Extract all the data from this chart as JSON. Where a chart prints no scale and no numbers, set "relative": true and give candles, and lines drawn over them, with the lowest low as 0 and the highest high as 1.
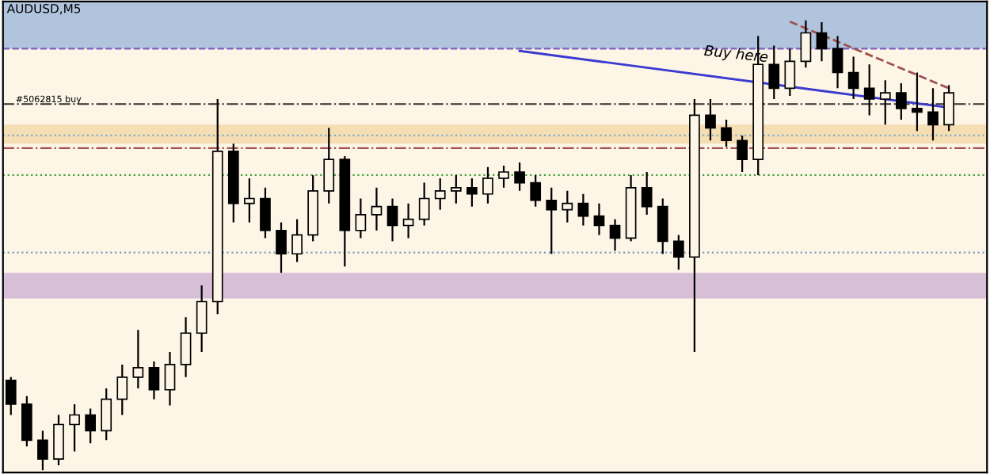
{
  "chart_data": {
    "type": "candlestick",
    "title": "AUDUSD,M5",
    "relative": true,
    "categories": [
      null,
      null,
      null,
      null,
      null,
      null,
      null,
      null,
      null,
      null,
      null,
      null,
      null,
      null,
      null,
      null,
      null,
      null,
      null,
      null,
      null,
      null,
      null,
      null,
      null,
      null,
      null,
      null,
      null,
      null,
      null,
      null,
      null,
      null,
      null,
      null,
      null,
      null,
      null,
      null,
      null,
      null,
      null,
      null,
      null,
      null,
      null,
      null,
      null,
      null,
      null,
      null,
      null,
      null,
      null,
      null,
      null,
      null,
      null,
      null
    ],
    "color": "#000000",
    "ohlc": [
      [
        0.2,
        0.207,
        0.123,
        0.147
      ],
      [
        0.147,
        0.165,
        0.053,
        0.067
      ],
      [
        0.067,
        0.088,
        0,
        0.025
      ],
      [
        0.025,
        0.123,
        0.011,
        0.102
      ],
      [
        0.102,
        0.147,
        0.042,
        0.123
      ],
      [
        0.123,
        0.137,
        0.06,
        0.088
      ],
      [
        0.088,
        0.182,
        0.067,
        0.158
      ],
      [
        0.158,
        0.235,
        0.123,
        0.207
      ],
      [
        0.207,
        0.312,
        0.182,
        0.228
      ],
      [
        0.228,
        0.242,
        0.158,
        0.179
      ],
      [
        0.179,
        0.263,
        0.144,
        0.235
      ],
      [
        0.235,
        0.34,
        0.207,
        0.305
      ],
      [
        0.305,
        0.411,
        0.263,
        0.375
      ],
      [
        0.375,
        0.825,
        0.347,
        0.709
      ],
      [
        0.709,
        0.726,
        0.551,
        0.593
      ],
      [
        0.593,
        0.649,
        0.551,
        0.604
      ],
      [
        0.604,
        0.628,
        0.516,
        0.533
      ],
      [
        0.533,
        0.551,
        0.439,
        0.481
      ],
      [
        0.481,
        0.558,
        0.463,
        0.523
      ],
      [
        0.523,
        0.656,
        0.509,
        0.621
      ],
      [
        0.621,
        0.761,
        0.593,
        0.691
      ],
      [
        0.691,
        0.698,
        0.453,
        0.533
      ],
      [
        0.533,
        0.604,
        0.516,
        0.568
      ],
      [
        0.568,
        0.628,
        0.533,
        0.586
      ],
      [
        0.586,
        0.604,
        0.509,
        0.544
      ],
      [
        0.544,
        0.593,
        0.516,
        0.558
      ],
      [
        0.558,
        0.639,
        0.544,
        0.604
      ],
      [
        0.604,
        0.649,
        0.579,
        0.621
      ],
      [
        0.621,
        0.656,
        0.593,
        0.628
      ],
      [
        0.628,
        0.649,
        0.586,
        0.614
      ],
      [
        0.614,
        0.674,
        0.593,
        0.649
      ],
      [
        0.649,
        0.677,
        0.628,
        0.663
      ],
      [
        0.663,
        0.684,
        0.621,
        0.639
      ],
      [
        0.639,
        0.656,
        0.586,
        0.6
      ],
      [
        0.6,
        0.628,
        0.481,
        0.579
      ],
      [
        0.579,
        0.621,
        0.551,
        0.593
      ],
      [
        0.593,
        0.614,
        0.544,
        0.565
      ],
      [
        0.565,
        0.593,
        0.523,
        0.544
      ],
      [
        0.544,
        0.558,
        0.488,
        0.516
      ],
      [
        0.516,
        0.656,
        0.509,
        0.628
      ],
      [
        0.628,
        0.663,
        0.568,
        0.586
      ],
      [
        0.586,
        0.604,
        0.481,
        0.509
      ],
      [
        0.509,
        0.523,
        0.446,
        0.474
      ],
      [
        0.474,
        0.825,
        0.263,
        0.789
      ],
      [
        0.789,
        0.825,
        0.733,
        0.761
      ],
      [
        0.761,
        0.779,
        0.719,
        0.733
      ],
      [
        0.733,
        0.744,
        0.663,
        0.691
      ],
      [
        0.691,
        0.965,
        0.656,
        0.902
      ],
      [
        0.902,
        0.944,
        0.825,
        0.849
      ],
      [
        0.849,
        0.937,
        0.832,
        0.909
      ],
      [
        0.909,
        1.0,
        0.895,
        0.972
      ],
      [
        0.972,
        0.996,
        0.909,
        0.937
      ],
      [
        0.937,
        0.965,
        0.849,
        0.884
      ],
      [
        0.884,
        0.919,
        0.825,
        0.849
      ],
      [
        0.849,
        0.902,
        0.789,
        0.825
      ],
      [
        0.825,
        0.867,
        0.768,
        0.839
      ],
      [
        0.839,
        0.86,
        0.779,
        0.804
      ],
      [
        0.804,
        0.884,
        0.754,
        0.796
      ],
      [
        0.796,
        0.849,
        0.733,
        0.768
      ],
      [
        0.768,
        0.856,
        0.754,
        0.839
      ]
    ],
    "series": [
      {
        "type": "line",
        "color": "#3a3ad0",
        "line_style": "solid",
        "values": [
          null,
          null,
          null,
          null,
          null,
          null,
          null,
          null,
          null,
          null,
          null,
          null,
          null,
          null,
          null,
          null,
          null,
          null,
          null,
          null,
          null,
          null,
          null,
          null,
          null,
          null,
          null,
          null,
          null,
          null,
          null,
          null,
          0.932,
          null,
          null,
          null,
          null,
          null,
          null,
          null,
          null,
          null,
          null,
          null,
          null,
          null,
          null,
          null,
          null,
          null,
          null,
          null,
          null,
          null,
          null,
          null,
          null,
          null,
          null,
          0.806
        ]
      },
      {
        "type": "line",
        "color": "#a05050",
        "line_style": "dashed",
        "values": [
          null,
          null,
          null,
          null,
          null,
          null,
          null,
          null,
          null,
          null,
          null,
          null,
          null,
          null,
          null,
          null,
          null,
          null,
          null,
          null,
          null,
          null,
          null,
          null,
          null,
          null,
          null,
          null,
          null,
          null,
          null,
          null,
          null,
          null,
          null,
          null,
          null,
          null,
          null,
          null,
          null,
          null,
          null,
          null,
          null,
          null,
          null,
          null,
          null,
          0.997,
          null,
          null,
          null,
          null,
          null,
          null,
          null,
          null,
          null,
          0.849
        ]
      }
    ],
    "ref_lines": [
      {
        "axis": "y",
        "value": 0.937,
        "color": "#8060c0",
        "line_style": "dashed"
      },
      {
        "axis": "y",
        "value": 0.814,
        "label": "#5062815 buy",
        "color": "#303030",
        "line_style": "dashdot"
      },
      {
        "axis": "y",
        "value": 0.744,
        "color": "#80b0c8",
        "line_style": "dotted"
      },
      {
        "axis": "y",
        "value": 0.716,
        "color": "#a05050",
        "line_style": "dashdot"
      },
      {
        "axis": "y",
        "value": 0.656,
        "color": "#40a040",
        "line_style": "dotted"
      },
      {
        "axis": "y",
        "value": 0.484,
        "color": "#80a0c0",
        "line_style": "dotted"
      }
    ],
    "bands": [
      {
        "axis": "y",
        "from": 0.937,
        "to": 1.042,
        "color": "#b0c4de"
      },
      {
        "axis": "y",
        "from": 0.726,
        "to": 0.768,
        "color": "#f5deb3"
      },
      {
        "axis": "y",
        "from": 0.382,
        "to": 0.439,
        "color": "#d8bfd8"
      }
    ],
    "annotations": [
      "Buy here"
    ]
  }
}
